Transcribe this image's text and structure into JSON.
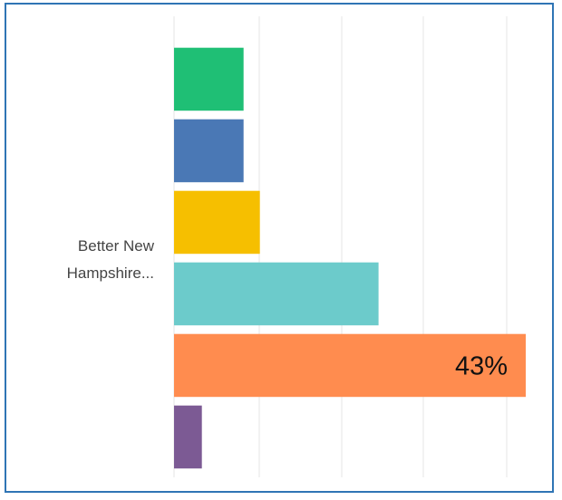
{
  "chart_data": {
    "type": "bar",
    "orientation": "horizontal",
    "categories": [
      "Better New Hampshire..."
    ],
    "xlim": [
      0,
      45
    ],
    "grid": true,
    "legend": "none",
    "series": [
      {
        "values": [
          8.5
        ],
        "color": "#1fbf75"
      },
      {
        "values": [
          8.5
        ],
        "color": "#4a78b5"
      },
      {
        "values": [
          10.5
        ],
        "color": "#f6bf00"
      },
      {
        "values": [
          25
        ],
        "color": "#6ccbcb"
      },
      {
        "values": [
          43
        ],
        "color": "#ff8c4f",
        "data_label": "43%"
      },
      {
        "values": [
          3.4
        ],
        "color": "#7c5a94"
      }
    ]
  }
}
